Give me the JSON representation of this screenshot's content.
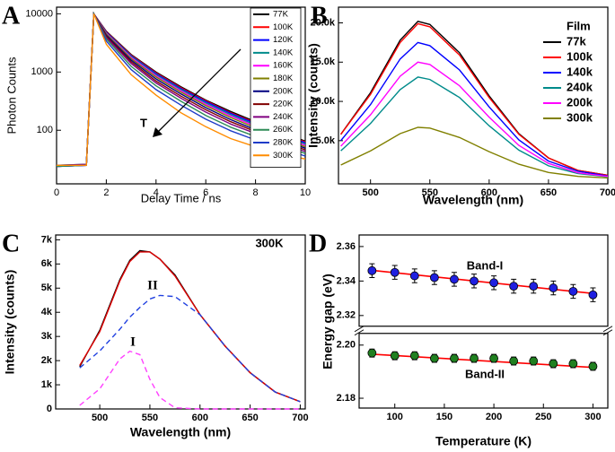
{
  "chart_data": [
    {
      "type": "line",
      "panel_label": "A",
      "yscale": "log",
      "xlabel": "Delay Time / ns",
      "ylabel": "Photon Counts",
      "xlim": [
        0,
        10
      ],
      "xticks": [
        0,
        2,
        4,
        6,
        8,
        10
      ],
      "ylim": [
        12,
        13000
      ],
      "yticks": [
        100,
        1000,
        10000
      ],
      "legend": "upper right",
      "annotations": [
        "T"
      ],
      "x": [
        0,
        1.2,
        1.5,
        2,
        3,
        4,
        5,
        6,
        7,
        8,
        9,
        10
      ],
      "series": [
        {
          "name": "77K",
          "color": "#000000",
          "values": [
            25,
            25,
            10000,
            5000,
            2000,
            1000,
            560,
            330,
            210,
            140,
            95,
            65
          ]
        },
        {
          "name": "100K",
          "color": "#ff0000",
          "values": [
            25,
            25,
            10000,
            4900,
            1950,
            970,
            540,
            320,
            200,
            135,
            92,
            63
          ]
        },
        {
          "name": "120K",
          "color": "#0000ff",
          "values": [
            24,
            25,
            10000,
            4800,
            1900,
            940,
            520,
            310,
            195,
            130,
            88,
            61
          ]
        },
        {
          "name": "140K",
          "color": "#008b8b",
          "values": [
            25,
            26,
            10000,
            4700,
            1850,
            900,
            500,
            295,
            185,
            123,
            84,
            58
          ]
        },
        {
          "name": "160K",
          "color": "#ff00ff",
          "values": [
            24,
            25,
            10000,
            4600,
            1780,
            860,
            475,
            280,
            175,
            117,
            80,
            55
          ]
        },
        {
          "name": "180K",
          "color": "#808000",
          "values": [
            25,
            25,
            10000,
            4500,
            1700,
            820,
            450,
            265,
            165,
            110,
            76,
            52
          ]
        },
        {
          "name": "200K",
          "color": "#000080",
          "values": [
            24,
            25,
            10000,
            4300,
            1600,
            760,
            420,
            245,
            152,
            102,
            71,
            49
          ]
        },
        {
          "name": "220K",
          "color": "#800000",
          "values": [
            25,
            25,
            10000,
            4100,
            1500,
            700,
            385,
            225,
            140,
            95,
            66,
            46
          ]
        },
        {
          "name": "240K",
          "color": "#800080",
          "values": [
            25,
            26,
            10000,
            3900,
            1400,
            650,
            355,
            205,
            128,
            88,
            61,
            43
          ]
        },
        {
          "name": "260K",
          "color": "#2e8b57",
          "values": [
            24,
            25,
            10000,
            3700,
            1250,
            580,
            315,
            180,
            113,
            78,
            55,
            40
          ]
        },
        {
          "name": "280K",
          "color": "#1e3cc8",
          "values": [
            25,
            25,
            10000,
            3400,
            1100,
            500,
            270,
            155,
            98,
            68,
            49,
            36
          ]
        },
        {
          "name": "300K",
          "color": "#ff8c00",
          "values": [
            25,
            25,
            10000,
            3000,
            900,
            400,
            200,
            115,
            72,
            52,
            40,
            32
          ]
        }
      ]
    },
    {
      "type": "line",
      "panel_label": "B",
      "xlabel": "Wavelength (nm)",
      "ylabel": "Intensity (counts)",
      "xlim": [
        473,
        700
      ],
      "xticks": [
        500,
        550,
        600,
        650,
        700
      ],
      "ylim": [
        -500,
        22000
      ],
      "yticks": [
        {
          "value": 5000,
          "label": "5.0k"
        },
        {
          "value": 10000,
          "label": "10.0k"
        },
        {
          "value": 15000,
          "label": "15.0k"
        },
        {
          "value": 20000,
          "label": "20.0k"
        }
      ],
      "legend": "upper right",
      "legend_title": "Film",
      "x": [
        475,
        500,
        525,
        540,
        550,
        575,
        600,
        625,
        650,
        675,
        700
      ],
      "series": [
        {
          "name": "77k",
          "color": "#000000",
          "values": [
            5800,
            11100,
            17800,
            20200,
            19800,
            16200,
            10700,
            5900,
            2800,
            1200,
            600
          ]
        },
        {
          "name": "100k",
          "color": "#ff0000",
          "values": [
            5800,
            10900,
            17500,
            19900,
            19500,
            15900,
            10500,
            5800,
            2800,
            1200,
            600
          ]
        },
        {
          "name": "140k",
          "color": "#0000ff",
          "values": [
            5000,
            9600,
            15400,
            17500,
            17100,
            14000,
            9300,
            5100,
            2400,
            1100,
            500
          ]
        },
        {
          "name": "240k",
          "color": "#008b8b",
          "values": [
            3700,
            7200,
            11500,
            13100,
            12800,
            10500,
            6900,
            3800,
            1800,
            800,
            400
          ]
        },
        {
          "name": "200k",
          "color": "#ff00ff",
          "values": [
            4300,
            8300,
            13200,
            15000,
            14700,
            12000,
            8000,
            4400,
            2100,
            900,
            450
          ]
        },
        {
          "name": "300k",
          "color": "#808000",
          "values": [
            1900,
            3700,
            5900,
            6700,
            6600,
            5400,
            3600,
            2000,
            950,
            450,
            250
          ]
        }
      ]
    },
    {
      "type": "line",
      "panel_label": "C",
      "xlabel": "Wavelength (nm)",
      "ylabel": "Intensity (counts)",
      "xlim": [
        456,
        705
      ],
      "xticks": [
        500,
        550,
        600,
        650,
        700
      ],
      "ylim": [
        0,
        7200
      ],
      "yticks": [
        0,
        {
          "value": 1000,
          "label": "1k"
        },
        {
          "value": 2000,
          "label": "2k"
        },
        {
          "value": 3000,
          "label": "3k"
        },
        {
          "value": 4000,
          "label": "4k"
        },
        {
          "value": 5000,
          "label": "5k"
        },
        {
          "value": 6000,
          "label": "6k"
        },
        {
          "value": 7000,
          "label": "7k"
        }
      ],
      "annotations": [
        "300K",
        "II",
        "I"
      ],
      "x": [
        480,
        500,
        520,
        530,
        540,
        550,
        560,
        575,
        600,
        625,
        650,
        675,
        700
      ],
      "series": [
        {
          "color": "#000000",
          "values": [
            1750,
            3250,
            5350,
            6150,
            6550,
            6500,
            6200,
            5550,
            3900,
            2600,
            1500,
            700,
            300
          ]
        },
        {
          "color": "#e00000",
          "values": [
            1800,
            3200,
            5300,
            6100,
            6500,
            6500,
            6200,
            5500,
            3900,
            2600,
            1500,
            700,
            300
          ]
        },
        {
          "color": "#2040e0",
          "dash": true,
          "values": [
            1700,
            2400,
            3300,
            3800,
            4200,
            4550,
            4700,
            4650,
            3900,
            2600,
            1500,
            700,
            300
          ]
        },
        {
          "color": "#ff40ff",
          "dash": true,
          "values": [
            150,
            830,
            2070,
            2390,
            2250,
            1230,
            470,
            50,
            0,
            0,
            0,
            0,
            0
          ]
        }
      ]
    },
    {
      "type": "scatter",
      "panel_label": "D",
      "xlabel": "Temperature (K)",
      "ylabel": "Energy gap (eV)",
      "xlim": [
        64,
        315
      ],
      "xticks": [
        100,
        150,
        200,
        250,
        300
      ],
      "segments": [
        {
          "ylim": [
            2.3138,
            2.3667
          ],
          "yticks": [
            2.32,
            2.34,
            2.36
          ]
        },
        {
          "ylim": [
            2.1763,
            2.2044
          ],
          "yticks": [
            2.18,
            {
              "value": 2.2,
              "label": "2.20"
            }
          ]
        }
      ],
      "annotations": [
        "Band-I",
        "Band-II"
      ],
      "x": [
        77,
        100,
        120,
        140,
        160,
        180,
        200,
        220,
        240,
        260,
        280,
        300
      ],
      "series": [
        {
          "color": "#2020e0",
          "values": [
            2.346,
            2.345,
            2.343,
            2.342,
            2.341,
            2.34,
            2.339,
            2.337,
            2.337,
            2.336,
            2.334,
            2.332
          ],
          "errors": [
            0.004,
            0.004,
            0.004,
            0.004,
            0.004,
            0.004,
            0.004,
            0.004,
            0.004,
            0.004,
            0.004,
            0.004
          ]
        },
        {
          "color": "#208020",
          "values": [
            2.197,
            2.196,
            2.196,
            2.195,
            2.195,
            2.195,
            2.195,
            2.194,
            2.194,
            2.193,
            2.193,
            2.192
          ],
          "errors": [
            0.0015,
            0.0015,
            0.0015,
            0.0015,
            0.0015,
            0.0015,
            0.0015,
            0.0015,
            0.0015,
            0.0015,
            0.0015,
            0.0015
          ]
        }
      ],
      "fits": [
        {
          "color": "#ff0000",
          "x": [
            77,
            300
          ],
          "values": [
            2.3462,
            2.3328
          ]
        },
        {
          "color": "#ff0000",
          "x": [
            77,
            300
          ],
          "values": [
            2.1966,
            2.1916
          ]
        }
      ]
    }
  ]
}
